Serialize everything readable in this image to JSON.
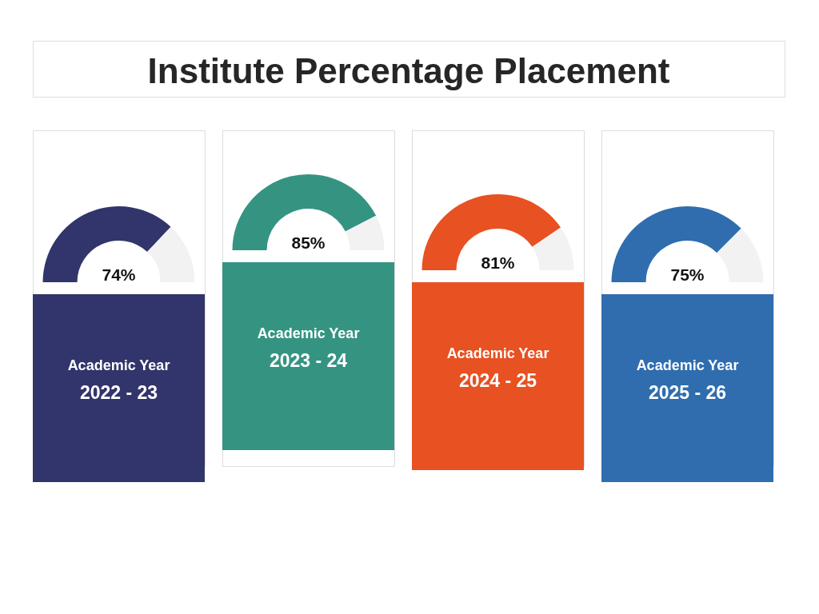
{
  "chart_data": [
    {
      "type": "other",
      "title": "Institute Percentage Placement"
    },
    {
      "type": "donut",
      "categories": [
        null,
        null
      ],
      "values": [
        74,
        26
      ],
      "colors": [
        "#32356b",
        "#f2f2f2"
      ],
      "value_labels": [
        "74%",
        null
      ],
      "annotations": [
        "Academic Year",
        "2022 - 23"
      ]
    },
    {
      "type": "donut",
      "categories": [
        null,
        null
      ],
      "values": [
        85,
        15
      ],
      "colors": [
        "#349481",
        "#f2f2f2"
      ],
      "value_labels": [
        "85%",
        null
      ],
      "annotations": [
        "Academic Year",
        "2023 - 24"
      ]
    },
    {
      "type": "donut",
      "categories": [
        null,
        null
      ],
      "values": [
        81,
        19
      ],
      "colors": [
        "#e85122",
        "#f2f2f2"
      ],
      "value_labels": [
        "81%",
        null
      ],
      "annotations": [
        "Academic Year",
        "2024 - 25"
      ]
    },
    {
      "type": "donut",
      "categories": [
        null,
        null
      ],
      "values": [
        75,
        25
      ],
      "colors": [
        "#2f6daf",
        "#f2f2f2"
      ],
      "value_labels": [
        "75%",
        null
      ],
      "annotations": [
        "Academic Year",
        "2025 - 26"
      ]
    }
  ]
}
